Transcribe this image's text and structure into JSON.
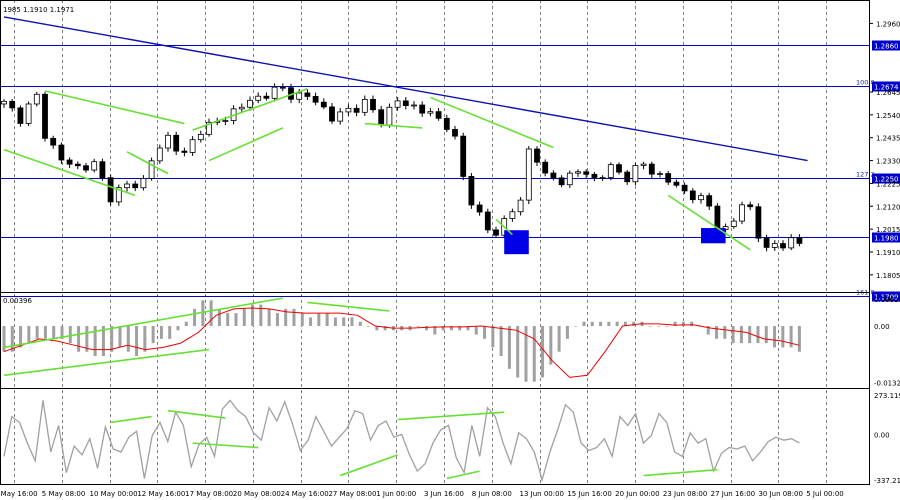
{
  "header": {
    "ohlc_text": "1985 1.1910 1.1971"
  },
  "chart_data": [
    {
      "type": "candlestick",
      "pane": "price",
      "ylim": [
        1.174,
        1.304
      ],
      "y_ticks": [
        "1.2960",
        "1.2645",
        "1.2540",
        "1.2435",
        "1.2330",
        "1.2225",
        "1.2120",
        "1.2015",
        "1.1910",
        "1.1805"
      ],
      "x_labels": [
        "2 May 16:00",
        "5 May 08:00",
        "10 May 00:00",
        "12 May 16:00",
        "17 May 08:00",
        "20 May 08:00",
        "24 May 16:00",
        "27 May 08:00",
        "1 Jun 00:00",
        "3 Jun 16:00",
        "8 Jun 08:00",
        "13 Jun 00:00",
        "15 Jun 16:00",
        "20 Jun 00:00",
        "23 Jun 08:00",
        "27 Jun 16:00",
        "30 Jun 08:00",
        "5 Jul 00:00"
      ],
      "close_path": [
        [
          0,
          1.259
        ],
        [
          2,
          1.253
        ],
        [
          4,
          1.262
        ],
        [
          5,
          1.2455
        ],
        [
          7,
          1.233
        ],
        [
          9,
          1.23
        ],
        [
          11,
          1.231
        ],
        [
          13,
          1.217
        ],
        [
          15,
          1.221
        ],
        [
          17,
          1.224
        ],
        [
          18,
          1.233
        ],
        [
          20,
          1.244
        ],
        [
          22,
          1.235
        ],
        [
          24,
          1.248
        ],
        [
          26,
          1.25
        ],
        [
          28,
          1.256
        ],
        [
          30,
          1.26
        ],
        [
          32,
          1.264
        ],
        [
          34,
          1.2655
        ],
        [
          36,
          1.2625
        ],
        [
          38,
          1.261
        ],
        [
          39,
          1.257
        ],
        [
          40,
          1.252
        ],
        [
          42,
          1.2565
        ],
        [
          44,
          1.259
        ],
        [
          46,
          1.252
        ],
        [
          48,
          1.26
        ],
        [
          50,
          1.258
        ],
        [
          52,
          1.254
        ],
        [
          54,
          1.25
        ],
        [
          55,
          1.242
        ],
        [
          56,
          1.225
        ],
        [
          57,
          1.215
        ],
        [
          58,
          1.208
        ],
        [
          59,
          1.201
        ],
        [
          60,
          1.199
        ],
        [
          61,
          1.206
        ],
        [
          62,
          1.211
        ],
        [
          63,
          1.213
        ],
        [
          64,
          1.238
        ],
        [
          65,
          1.235
        ],
        [
          66,
          1.225
        ],
        [
          68,
          1.224
        ],
        [
          70,
          1.228
        ],
        [
          72,
          1.225
        ],
        [
          74,
          1.229
        ],
        [
          76,
          1.226
        ],
        [
          78,
          1.231
        ],
        [
          80,
          1.226
        ],
        [
          82,
          1.221
        ],
        [
          84,
          1.217
        ],
        [
          86,
          1.212
        ],
        [
          87,
          1.204
        ],
        [
          88,
          1.2005
        ],
        [
          89,
          1.205
        ],
        [
          90,
          1.214
        ],
        [
          91,
          1.211
        ],
        [
          92,
          1.198
        ],
        [
          93,
          1.192
        ],
        [
          94,
          1.195
        ]
      ],
      "trendline": {
        "from": [
          0,
          1.299
        ],
        "to": [
          98,
          1.233
        ]
      },
      "hlines": [
        {
          "price": 1.286,
          "tag": "1.2860",
          "fib": ""
        },
        {
          "price": 1.2674,
          "tag": "1.2674",
          "fib": "100.0"
        },
        {
          "price": 1.225,
          "tag": "1.2250",
          "fib": "127.2"
        },
        {
          "price": 1.198,
          "tag": "1.1980",
          "fib": ""
        },
        {
          "price": 1.1709,
          "tag": "1.1709",
          "fib": "161.8"
        }
      ],
      "green_lines": [
        [
          [
            5,
            1.265
          ],
          [
            22,
            1.25
          ]
        ],
        [
          [
            0,
            1.238
          ],
          [
            16,
            1.217
          ]
        ],
        [
          [
            15,
            1.237
          ],
          [
            20,
            1.227
          ]
        ],
        [
          [
            23,
            1.247
          ],
          [
            37,
            1.266
          ]
        ],
        [
          [
            25,
            1.233
          ],
          [
            34,
            1.248
          ]
        ],
        [
          [
            44,
            1.25
          ],
          [
            51,
            1.248
          ]
        ],
        [
          [
            52,
            1.262
          ],
          [
            67,
            1.239
          ]
        ],
        [
          [
            60,
            1.206
          ],
          [
            62,
            1.199
          ]
        ],
        [
          [
            81,
            1.217
          ],
          [
            91,
            1.192
          ]
        ]
      ],
      "blue_boxes": [
        {
          "x": [
            61,
            64
          ],
          "price": [
            1.19,
            1.201
          ]
        },
        {
          "x": [
            85,
            88
          ],
          "price": [
            1.195,
            1.202
          ]
        }
      ]
    },
    {
      "type": "histogram+line",
      "pane": "MACD",
      "label": "0.00396",
      "y_ticks": [
        "0.00628",
        "0.00",
        "-0.01323"
      ],
      "ylim": [
        -0.014,
        0.007
      ],
      "series": [
        {
          "name": "",
          "kind": "bar",
          "color": "#a0a0a0",
          "values": [
            -0.006,
            -0.006,
            -0.005,
            -0.004,
            -0.003,
            -0.003,
            -0.003,
            -0.003,
            -0.004,
            -0.006,
            -0.006,
            -0.007,
            -0.007,
            -0.006,
            -0.005,
            -0.006,
            -0.007,
            -0.006,
            -0.004,
            -0.003,
            -0.003,
            -0.001,
            0.001,
            0.004,
            0.006,
            0.006,
            0.004,
            0.003,
            0.003,
            0.004,
            0.005,
            0.005,
            0.004,
            0.003,
            0.004,
            0.004,
            0.003,
            0.002,
            0.003,
            0.003,
            0.002,
            0.002,
            0.002,
            0.001,
            0.0,
            -0.001,
            -0.001,
            -0.001,
            -0.001,
            -0.001,
            0.0,
            -0.001,
            -0.002,
            -0.001,
            -0.001,
            -0.001,
            -0.001,
            -0.002,
            -0.003,
            -0.005,
            -0.007,
            -0.01,
            -0.012,
            -0.013,
            -0.013,
            -0.012,
            -0.009,
            -0.006,
            -0.003,
            0.0,
            0.001,
            0.001,
            0.001,
            0.001,
            0.001,
            0.001,
            0.001,
            0.001,
            0.0,
            0.0,
            0.0,
            0.001,
            0.001,
            0.001,
            0.0,
            -0.002,
            -0.003,
            -0.003,
            -0.004,
            -0.004,
            -0.004,
            -0.004,
            -0.004,
            -0.005,
            -0.005,
            -0.005,
            -0.006
          ]
        },
        {
          "name": "",
          "kind": "line",
          "color": "#ee0000",
          "values": [
            -0.006,
            -0.0045,
            -0.003,
            -0.0035,
            -0.0045,
            -0.0055,
            -0.0055,
            -0.0045,
            -0.0055,
            -0.005,
            -0.004,
            -0.0015,
            0.0025,
            0.004,
            0.0042,
            0.004,
            0.0033,
            0.003,
            0.003,
            0.003,
            0.0025,
            0.0,
            -0.0005,
            -0.0005,
            -0.0003,
            -0.0002,
            -0.0002,
            0.0,
            -0.0005,
            -0.001,
            -0.003,
            -0.008,
            -0.012,
            -0.0115,
            -0.006,
            0.0,
            0.0005,
            0.0005,
            0.0002,
            0.0003,
            -0.0005,
            -0.001,
            -0.0015,
            -0.003,
            -0.0035,
            -0.0045
          ]
        }
      ],
      "green_lines": [
        [
          [
            0,
            -0.005
          ],
          [
            34,
            0.0065
          ]
        ],
        [
          [
            0,
            -0.0115
          ],
          [
            25,
            -0.0055
          ]
        ],
        [
          [
            37,
            0.0055
          ],
          [
            47,
            0.0035
          ]
        ]
      ]
    },
    {
      "type": "line",
      "pane": "CCI",
      "y_ticks": [
        "273.1199",
        "0.00",
        "-337.2113"
      ],
      "ylim": [
        -337.2113,
        273.1199
      ],
      "series": [
        {
          "name": "",
          "color": "#a0a0a0",
          "values": [
            -150,
            120,
            80,
            -60,
            -180,
            230,
            -120,
            60,
            -260,
            -80,
            -140,
            -30,
            -230,
            50,
            -100,
            -120,
            -20,
            20,
            -300,
            -10,
            80,
            -50,
            150,
            60,
            -220,
            -70,
            -20,
            -150,
            170,
            230,
            160,
            120,
            10,
            -40,
            180,
            90,
            220,
            70,
            -110,
            -40,
            120,
            20,
            -80,
            -20,
            40,
            160,
            140,
            -40,
            60,
            90,
            -20,
            0,
            -140,
            -250,
            -200,
            -60,
            30,
            60,
            -160,
            -260,
            60,
            -150,
            180,
            120,
            -60,
            -200,
            10,
            -30,
            -120,
            -310,
            -120,
            30,
            200,
            150,
            -60,
            -110,
            -90,
            -30,
            -150,
            120,
            60,
            140,
            -60,
            -10,
            140,
            80,
            -120,
            -150,
            10,
            -60,
            -30,
            -250,
            -130,
            -90,
            -100,
            -80,
            -180,
            -120,
            -50,
            -20,
            -40,
            -30,
            -60
          ]
        }
      ],
      "green_lines": [
        [
          [
            13,
            80
          ],
          [
            18,
            120
          ]
        ],
        [
          [
            20,
            160
          ],
          [
            27,
            110
          ]
        ],
        [
          [
            23,
            -60
          ],
          [
            31,
            -90
          ]
        ],
        [
          [
            41,
            -280
          ],
          [
            48,
            -140
          ]
        ],
        [
          [
            48,
            100
          ],
          [
            61,
            150
          ]
        ],
        [
          [
            54,
            -300
          ],
          [
            58,
            -250
          ]
        ],
        [
          [
            78,
            -280
          ],
          [
            87,
            -240
          ]
        ]
      ]
    }
  ]
}
